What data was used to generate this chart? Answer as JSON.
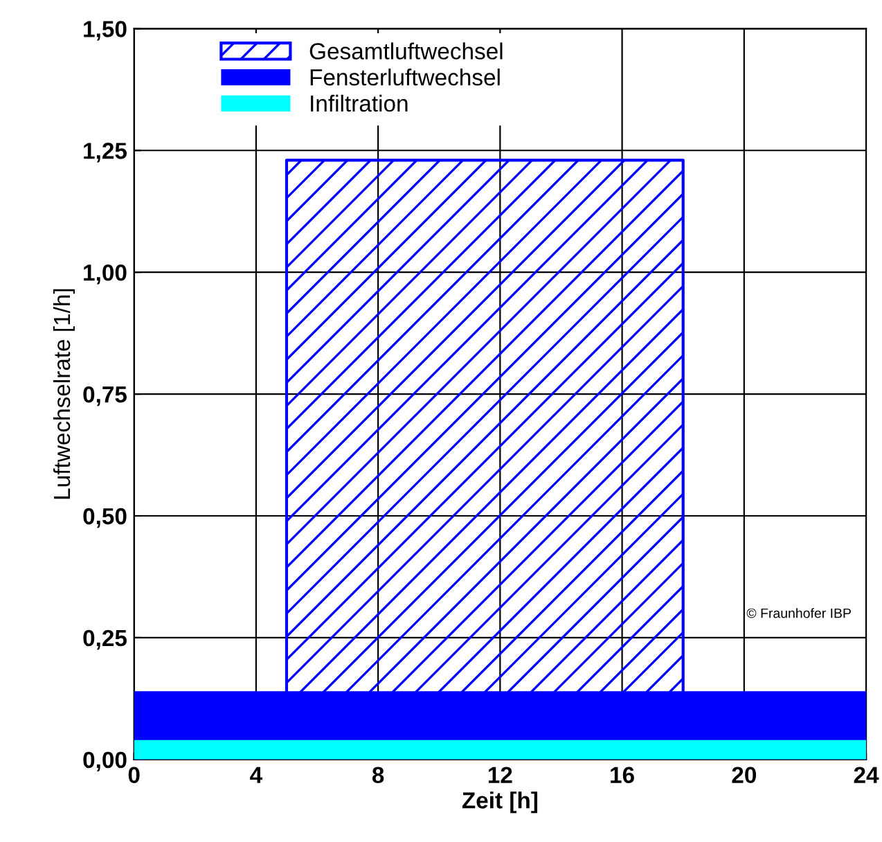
{
  "chart_data": {
    "type": "area",
    "xlabel": "Zeit [h]",
    "ylabel": "Luftwechselrate [1/h]",
    "series": [
      {
        "name": "Gesamtluftwechsel",
        "color": "#0000ff",
        "x": [
          5,
          18
        ],
        "values": [
          1.23,
          1.23
        ]
      },
      {
        "name": "Fensterluftwechsel",
        "color": "#0000ff",
        "x": [
          0,
          24
        ],
        "values": [
          0.14,
          0.14
        ]
      },
      {
        "name": "Infiltration",
        "color": "#00ffff",
        "x": [
          0,
          24
        ],
        "values": [
          0.04,
          0.04
        ]
      }
    ],
    "xlim": [
      0,
      24
    ],
    "xticks": [
      0,
      4,
      8,
      12,
      16,
      20,
      24
    ],
    "ylim": [
      0,
      1.5
    ],
    "yticks": [
      {
        "value": 0,
        "label": "0,00"
      },
      {
        "value": 0.25,
        "label": "0,25"
      },
      {
        "value": 0.5,
        "label": "0,50"
      },
      {
        "value": 0.75,
        "label": "0,75"
      },
      {
        "value": 1,
        "label": "1,00"
      },
      {
        "value": 1.25,
        "label": "1,25"
      },
      {
        "value": 1.5,
        "label": "1,50"
      }
    ],
    "grid": true,
    "legend": "top left",
    "annotations": [
      "© Fraunhofer IBP"
    ]
  }
}
